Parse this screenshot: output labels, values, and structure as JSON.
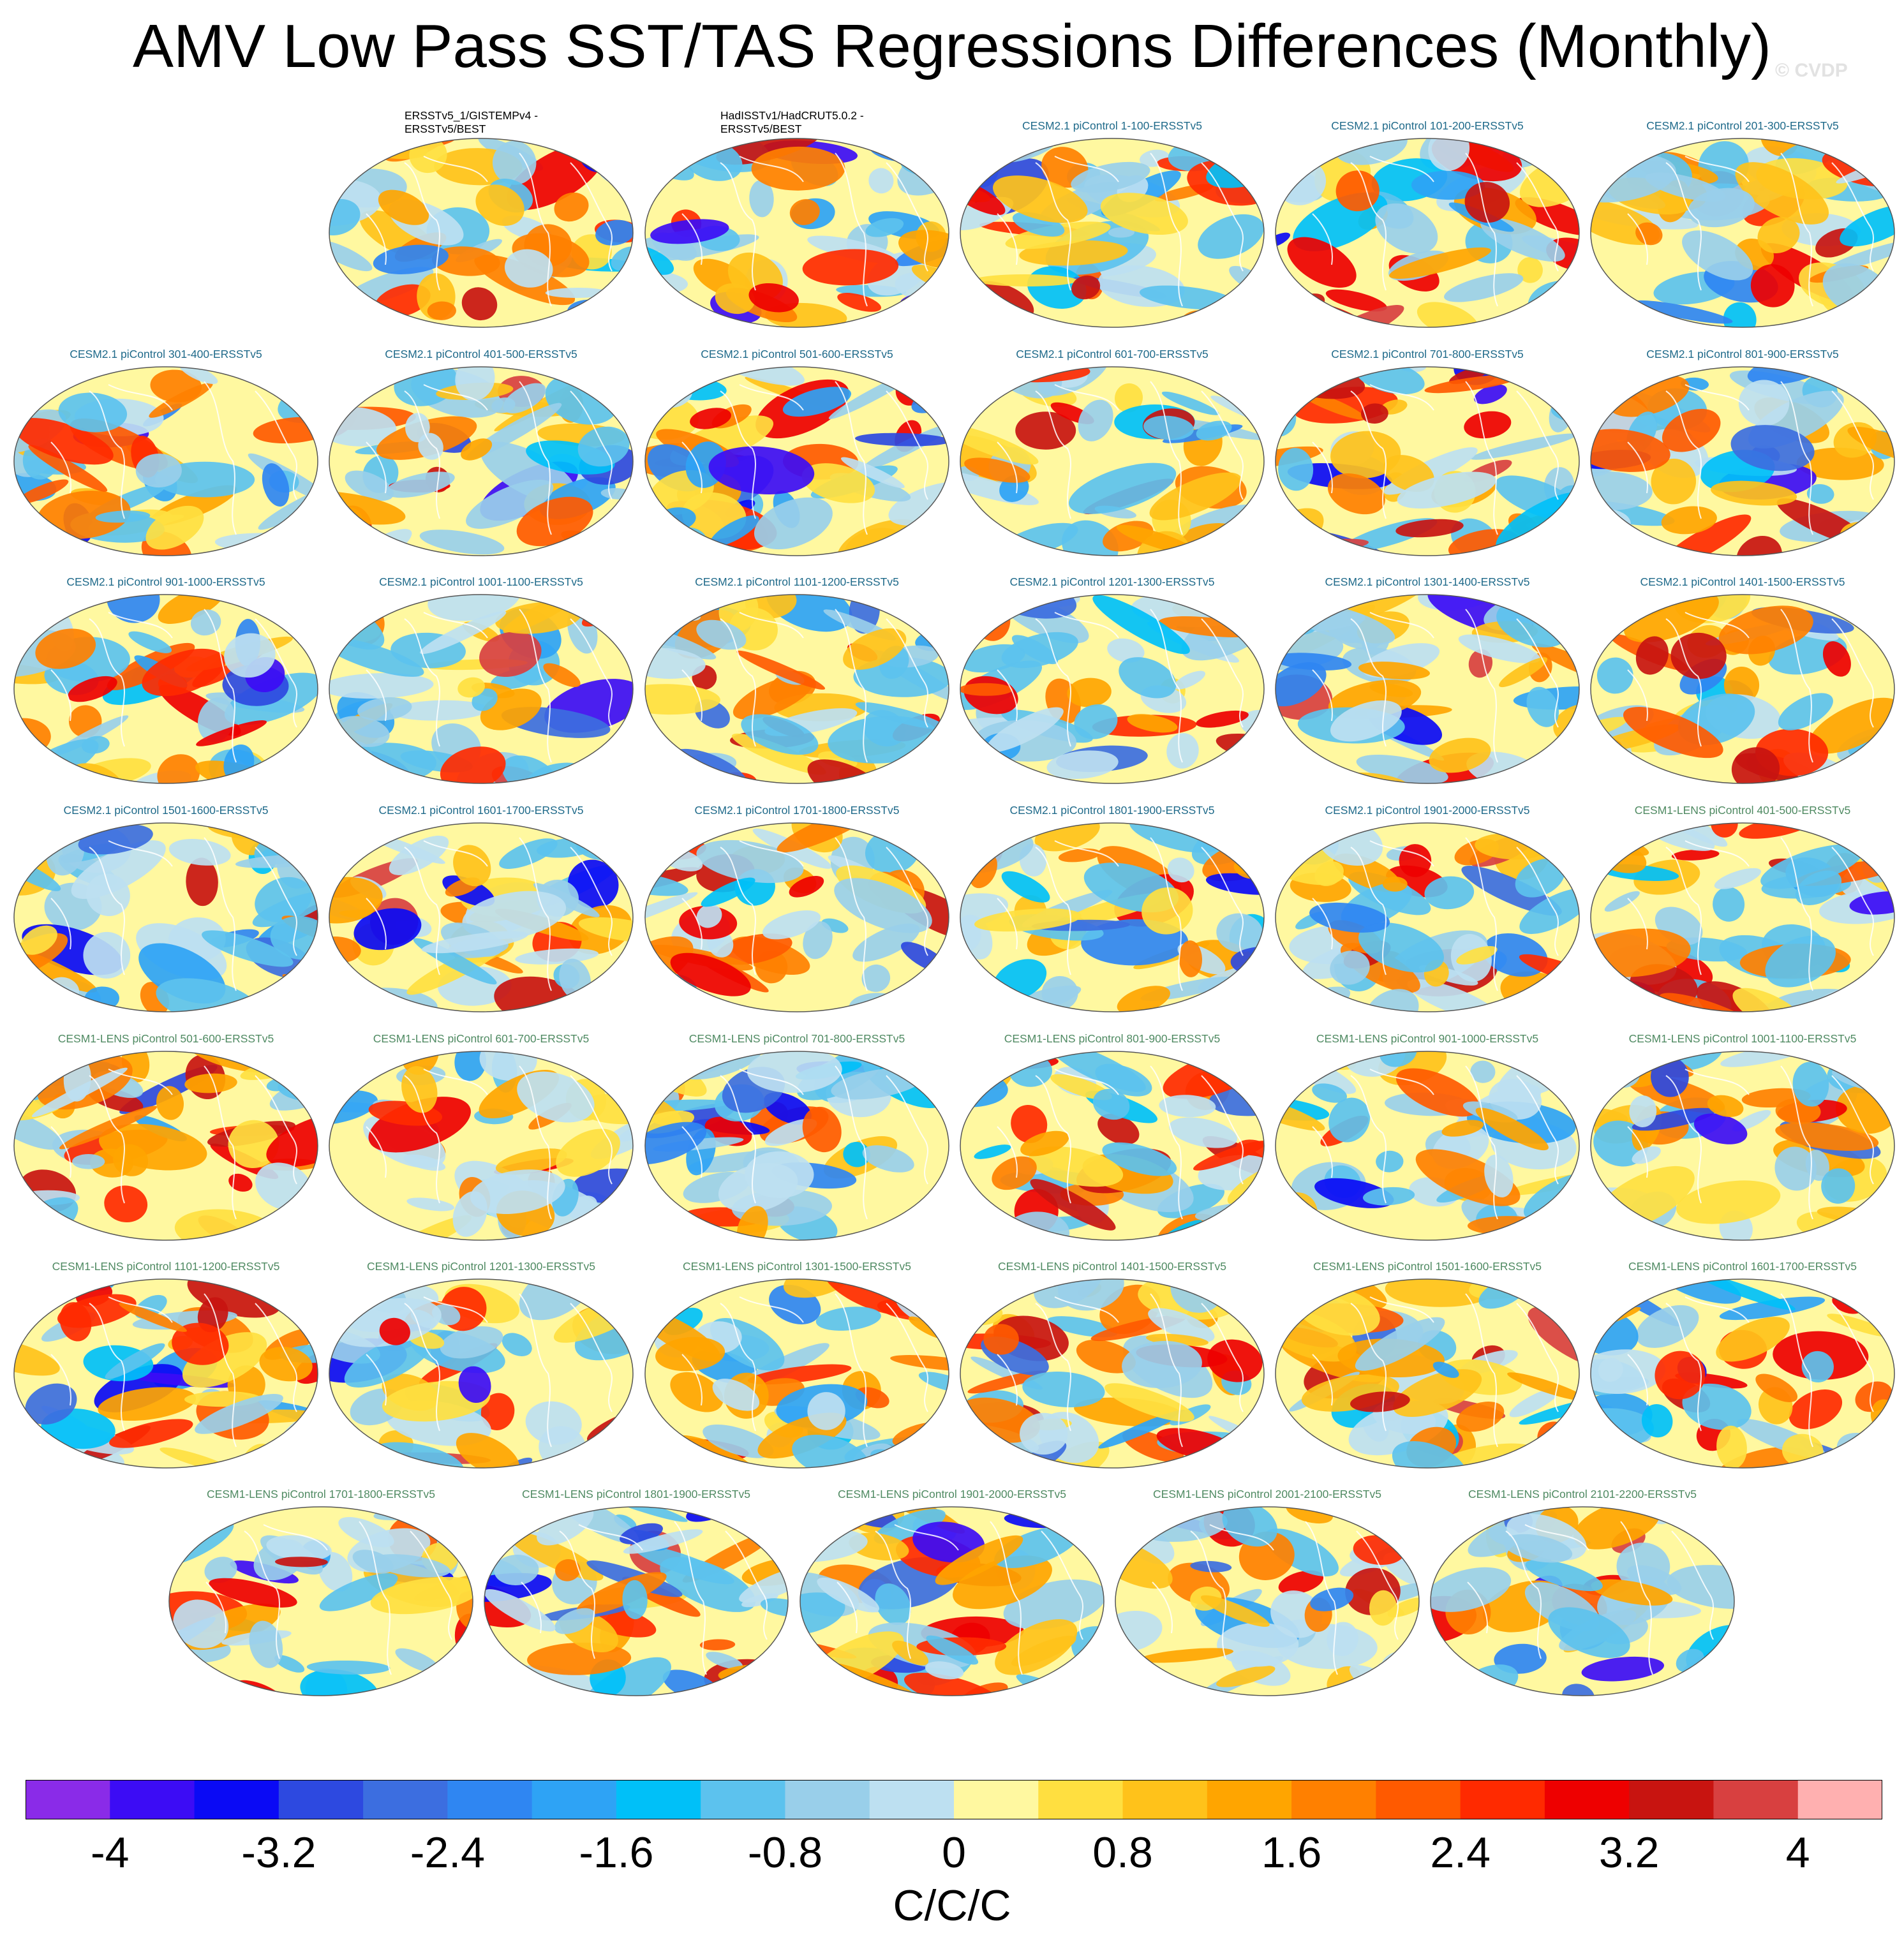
{
  "figure": {
    "title": "AMV Low Pass SST/TAS Regressions Differences (Monthly)",
    "watermark": "© CVDP"
  },
  "panels": [
    {
      "title": "ERSSTv5_1/GISTEMPv4 - ERSSTv5/BEST",
      "group": "obs"
    },
    {
      "title": "HadISSTv1/HadCRUT5.0.2 - ERSSTv5/BEST",
      "group": "obs"
    },
    {
      "title": "CESM2.1 piControl 1-100-ERSSTv5",
      "group": "cesm2"
    },
    {
      "title": "CESM2.1 piControl 101-200-ERSSTv5",
      "group": "cesm2"
    },
    {
      "title": "CESM2.1 piControl 201-300-ERSSTv5",
      "group": "cesm2"
    },
    {
      "title": "CESM2.1 piControl 301-400-ERSSTv5",
      "group": "cesm2"
    },
    {
      "title": "CESM2.1 piControl 401-500-ERSSTv5",
      "group": "cesm2"
    },
    {
      "title": "CESM2.1 piControl 501-600-ERSSTv5",
      "group": "cesm2"
    },
    {
      "title": "CESM2.1 piControl 601-700-ERSSTv5",
      "group": "cesm2"
    },
    {
      "title": "CESM2.1 piControl 701-800-ERSSTv5",
      "group": "cesm2"
    },
    {
      "title": "CESM2.1 piControl 801-900-ERSSTv5",
      "group": "cesm2"
    },
    {
      "title": "CESM2.1 piControl 901-1000-ERSSTv5",
      "group": "cesm2"
    },
    {
      "title": "CESM2.1 piControl 1001-1100-ERSSTv5",
      "group": "cesm2"
    },
    {
      "title": "CESM2.1 piControl 1101-1200-ERSSTv5",
      "group": "cesm2"
    },
    {
      "title": "CESM2.1 piControl 1201-1300-ERSSTv5",
      "group": "cesm2"
    },
    {
      "title": "CESM2.1 piControl 1301-1400-ERSSTv5",
      "group": "cesm2"
    },
    {
      "title": "CESM2.1 piControl 1401-1500-ERSSTv5",
      "group": "cesm2"
    },
    {
      "title": "CESM2.1 piControl 1501-1600-ERSSTv5",
      "group": "cesm2"
    },
    {
      "title": "CESM2.1 piControl 1601-1700-ERSSTv5",
      "group": "cesm2"
    },
    {
      "title": "CESM2.1 piControl 1701-1800-ERSSTv5",
      "group": "cesm2"
    },
    {
      "title": "CESM2.1 piControl 1801-1900-ERSSTv5",
      "group": "cesm2"
    },
    {
      "title": "CESM2.1 piControl 1901-2000-ERSSTv5",
      "group": "cesm2"
    },
    {
      "title": "CESM1-LENS piControl 401-500-ERSSTv5",
      "group": "cesm1"
    },
    {
      "title": "CESM1-LENS piControl 501-600-ERSSTv5",
      "group": "cesm1"
    },
    {
      "title": "CESM1-LENS piControl 601-700-ERSSTv5",
      "group": "cesm1"
    },
    {
      "title": "CESM1-LENS piControl 701-800-ERSSTv5",
      "group": "cesm1"
    },
    {
      "title": "CESM1-LENS piControl 801-900-ERSSTv5",
      "group": "cesm1"
    },
    {
      "title": "CESM1-LENS piControl 901-1000-ERSSTv5",
      "group": "cesm1"
    },
    {
      "title": "CESM1-LENS piControl 1001-1100-ERSSTv5",
      "group": "cesm1"
    },
    {
      "title": "CESM1-LENS piControl 1101-1200-ERSSTv5",
      "group": "cesm1"
    },
    {
      "title": "CESM1-LENS piControl 1201-1300-ERSSTv5",
      "group": "cesm1"
    },
    {
      "title": "CESM1-LENS piControl 1301-1500-ERSSTv5",
      "group": "cesm1"
    },
    {
      "title": "CESM1-LENS piControl 1401-1500-ERSSTv5",
      "group": "cesm1"
    },
    {
      "title": "CESM1-LENS piControl 1501-1600-ERSSTv5",
      "group": "cesm1"
    },
    {
      "title": "CESM1-LENS piControl 1601-1700-ERSSTv5",
      "group": "cesm1"
    },
    {
      "title": "CESM1-LENS piControl 1701-1800-ERSSTv5",
      "group": "cesm1"
    },
    {
      "title": "CESM1-LENS piControl 1801-1900-ERSSTv5",
      "group": "cesm1"
    },
    {
      "title": "CESM1-LENS piControl 1901-2000-ERSSTv5",
      "group": "cesm1"
    },
    {
      "title": "CESM1-LENS piControl 2001-2100-ERSSTv5",
      "group": "cesm1"
    },
    {
      "title": "CESM1-LENS piControl 2101-2200-ERSSTv5",
      "group": "cesm1"
    }
  ],
  "colorbar": {
    "colors": [
      "#8a2be8",
      "#3c0cf5",
      "#0a0af5",
      "#2d49e0",
      "#3c6ee0",
      "#2f86f2",
      "#2ea3f5",
      "#00c0f8",
      "#5cc2ee",
      "#99cfea",
      "#bde0f1",
      "#fff8a0",
      "#ffdf40",
      "#ffc21a",
      "#ffa500",
      "#ff8000",
      "#ff5a00",
      "#ff2a00",
      "#ee0000",
      "#c81410",
      "#d84040",
      "#ffb0b0"
    ],
    "tick_labels": [
      "-4",
      "-3.2",
      "-2.4",
      "-1.6",
      "-0.8",
      "0",
      "0.8",
      "1.6",
      "2.4",
      "3.2",
      "4"
    ],
    "units": "C/C/C"
  },
  "group_colors": {
    "obs": "#000000",
    "cesm2": "#1f6a8a",
    "cesm1": "#4f8a62"
  }
}
